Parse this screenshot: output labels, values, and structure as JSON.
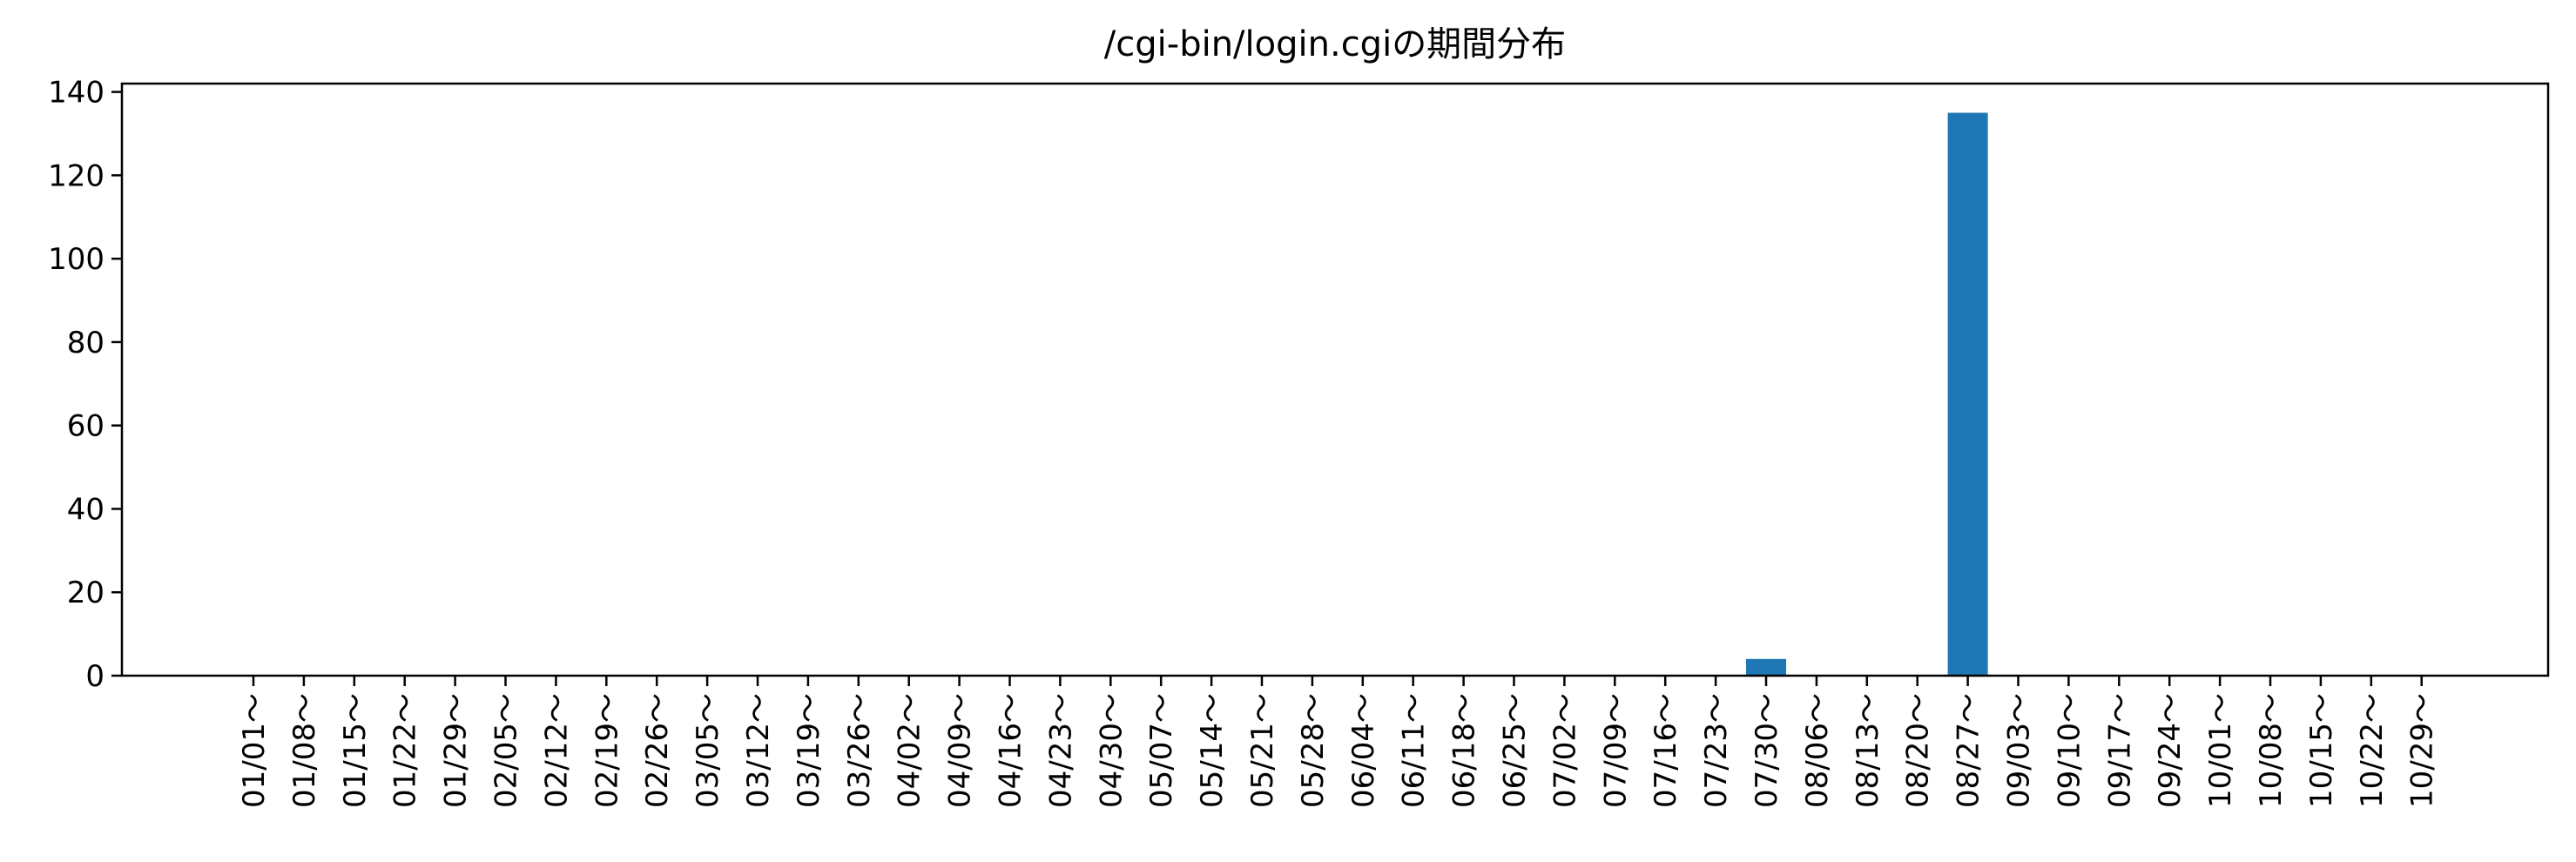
{
  "chart_data": {
    "type": "bar",
    "title": "/cgi-bin/login.cgiの期間分布",
    "xlabel": "",
    "ylabel": "",
    "ylim": [
      0,
      142
    ],
    "yticks": [
      0,
      20,
      40,
      60,
      80,
      100,
      120,
      140
    ],
    "grid": false,
    "legend": "none",
    "bar_color": "#1f77b4",
    "categories": [
      "01/01～",
      "01/08～",
      "01/15～",
      "01/22～",
      "01/29～",
      "02/05～",
      "02/12～",
      "02/19～",
      "02/26～",
      "03/05～",
      "03/12～",
      "03/19～",
      "03/26～",
      "04/02～",
      "04/09～",
      "04/16～",
      "04/23～",
      "04/30～",
      "05/07～",
      "05/14～",
      "05/21～",
      "05/28～",
      "06/04～",
      "06/11～",
      "06/18～",
      "06/25～",
      "07/02～",
      "07/09～",
      "07/16～",
      "07/23～",
      "07/30～",
      "08/06～",
      "08/13～",
      "08/20～",
      "08/27～",
      "09/03～",
      "09/10～",
      "09/17～",
      "09/24～",
      "10/01～",
      "10/08～",
      "10/15～",
      "10/22～",
      "10/29～"
    ],
    "values": [
      0,
      0,
      0,
      0,
      0,
      0,
      0,
      0,
      0,
      0,
      0,
      0,
      0,
      0,
      0,
      0,
      0,
      0,
      0,
      0,
      0,
      0,
      0,
      0,
      0,
      0,
      0,
      0,
      0,
      0,
      4,
      0,
      0,
      0,
      135,
      0,
      0,
      0,
      0,
      0,
      0,
      0,
      0,
      0
    ]
  }
}
